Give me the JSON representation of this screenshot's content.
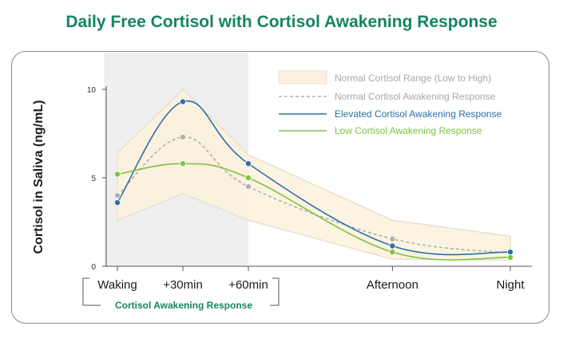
{
  "title": "Daily Free Cortisol with Cortisol Awakening Response",
  "colors": {
    "title": "#14865c",
    "band_fill": "#fbf1dc",
    "band_stroke": "#e6e0d2",
    "shade": "#efefef",
    "normal": "#b0b0b0",
    "elevated": "#2e6fa8",
    "low": "#7fc243",
    "axis": "#555555",
    "car": "#14865c"
  },
  "chart_data": {
    "type": "line",
    "title": "Daily Free Cortisol with Cortisol Awakening Response",
    "xlabel": "",
    "ylabel": "Cortisol in Saliva (ng/mL)",
    "ylim": [
      0,
      10
    ],
    "yticks": [
      "0",
      "5",
      "10"
    ],
    "categories": [
      "Waking",
      "+30min",
      "+60min",
      "Afternoon",
      "Night"
    ],
    "x": [
      0,
      1,
      2,
      4.2,
      6
    ],
    "grid": false,
    "legend_position": "top-right",
    "shaded_region": {
      "x_from": -0.2,
      "x_to": 2,
      "label": "Cortisol Awakening Response"
    },
    "band": {
      "name": "Normal Cortisol Range (Low to High)",
      "low": [
        2.6,
        4.1,
        2.6,
        0.4,
        0.35
      ],
      "high": [
        6.4,
        10.0,
        6.3,
        2.6,
        1.7
      ]
    },
    "series": [
      {
        "name": "Normal Cortisol Awakening Response",
        "style": "dashed",
        "values": [
          4.0,
          7.3,
          4.5,
          1.55,
          0.75
        ]
      },
      {
        "name": "Elevated Cortisol Awakening Response",
        "style": "solid",
        "values": [
          3.6,
          9.3,
          5.8,
          1.15,
          0.8
        ]
      },
      {
        "name": "Low Cortisol Awakening Response",
        "style": "solid",
        "values": [
          5.2,
          5.8,
          5.0,
          0.8,
          0.5
        ]
      }
    ]
  }
}
